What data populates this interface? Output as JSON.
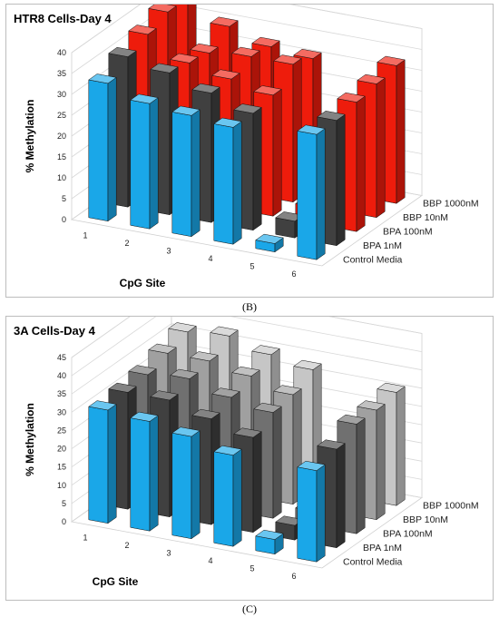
{
  "chart_data": [
    {
      "type": "bar",
      "title": "HTR8 Cells-Day 4",
      "panel_label": "(B)",
      "xlabel": "CpG Site",
      "ylabel": "% Methylation",
      "zlabel": "",
      "categories": [
        "1",
        "2",
        "3",
        "4",
        "5",
        "6"
      ],
      "ylim": [
        0,
        40
      ],
      "yticks": [
        "0",
        "5",
        "10",
        "15",
        "20",
        "25",
        "30",
        "35",
        "40"
      ],
      "grid": true,
      "series": [
        {
          "name": "Control Media",
          "values": [
            33,
            30,
            29,
            28,
            2,
            30
          ]
        },
        {
          "name": "BPA 1nM",
          "values": [
            36,
            34,
            31,
            28,
            4,
            30
          ]
        },
        {
          "name": "BPA 100nM",
          "values": [
            38,
            33,
            31,
            29,
            4,
            31
          ]
        },
        {
          "name": "BBP 10nM",
          "values": [
            40,
            32,
            33,
            33,
            3,
            32
          ]
        },
        {
          "name": "BBP 1000nM",
          "values": [
            41,
            35,
            32,
            31,
            3,
            33
          ]
        }
      ],
      "colors": [
        "#1aa7e8",
        "#404040",
        "#ee1c0c",
        "#ee1c0c",
        "#ee1c0c"
      ]
    },
    {
      "type": "bar",
      "title": "3A Cells-Day 4",
      "panel_label": "(C)",
      "xlabel": "CpG Site",
      "ylabel": "% Methylation",
      "zlabel": "",
      "categories": [
        "1",
        "2",
        "3",
        "4",
        "5",
        "6"
      ],
      "ylim": [
        0,
        45
      ],
      "yticks": [
        "0",
        "5",
        "10",
        "15",
        "20",
        "25",
        "30",
        "35",
        "40",
        "45"
      ],
      "grid": true,
      "series": [
        {
          "name": "Control Media",
          "values": [
            31,
            30,
            28,
            25,
            4,
            25
          ]
        },
        {
          "name": "BPA 1nM",
          "values": [
            32,
            32,
            29,
            26,
            4,
            27
          ]
        },
        {
          "name": "BPA 100nM",
          "values": [
            33,
            34,
            31,
            29,
            4,
            30
          ]
        },
        {
          "name": "BBP 10nM",
          "values": [
            35,
            35,
            33,
            30,
            4,
            30
          ]
        },
        {
          "name": "BBP 1000nM",
          "values": [
            37,
            38,
            35,
            33,
            5,
            31
          ]
        }
      ],
      "colors": [
        "#1aa7e8",
        "#404040",
        "#707070",
        "#a0a0a0",
        "#c6c6c6"
      ]
    }
  ]
}
